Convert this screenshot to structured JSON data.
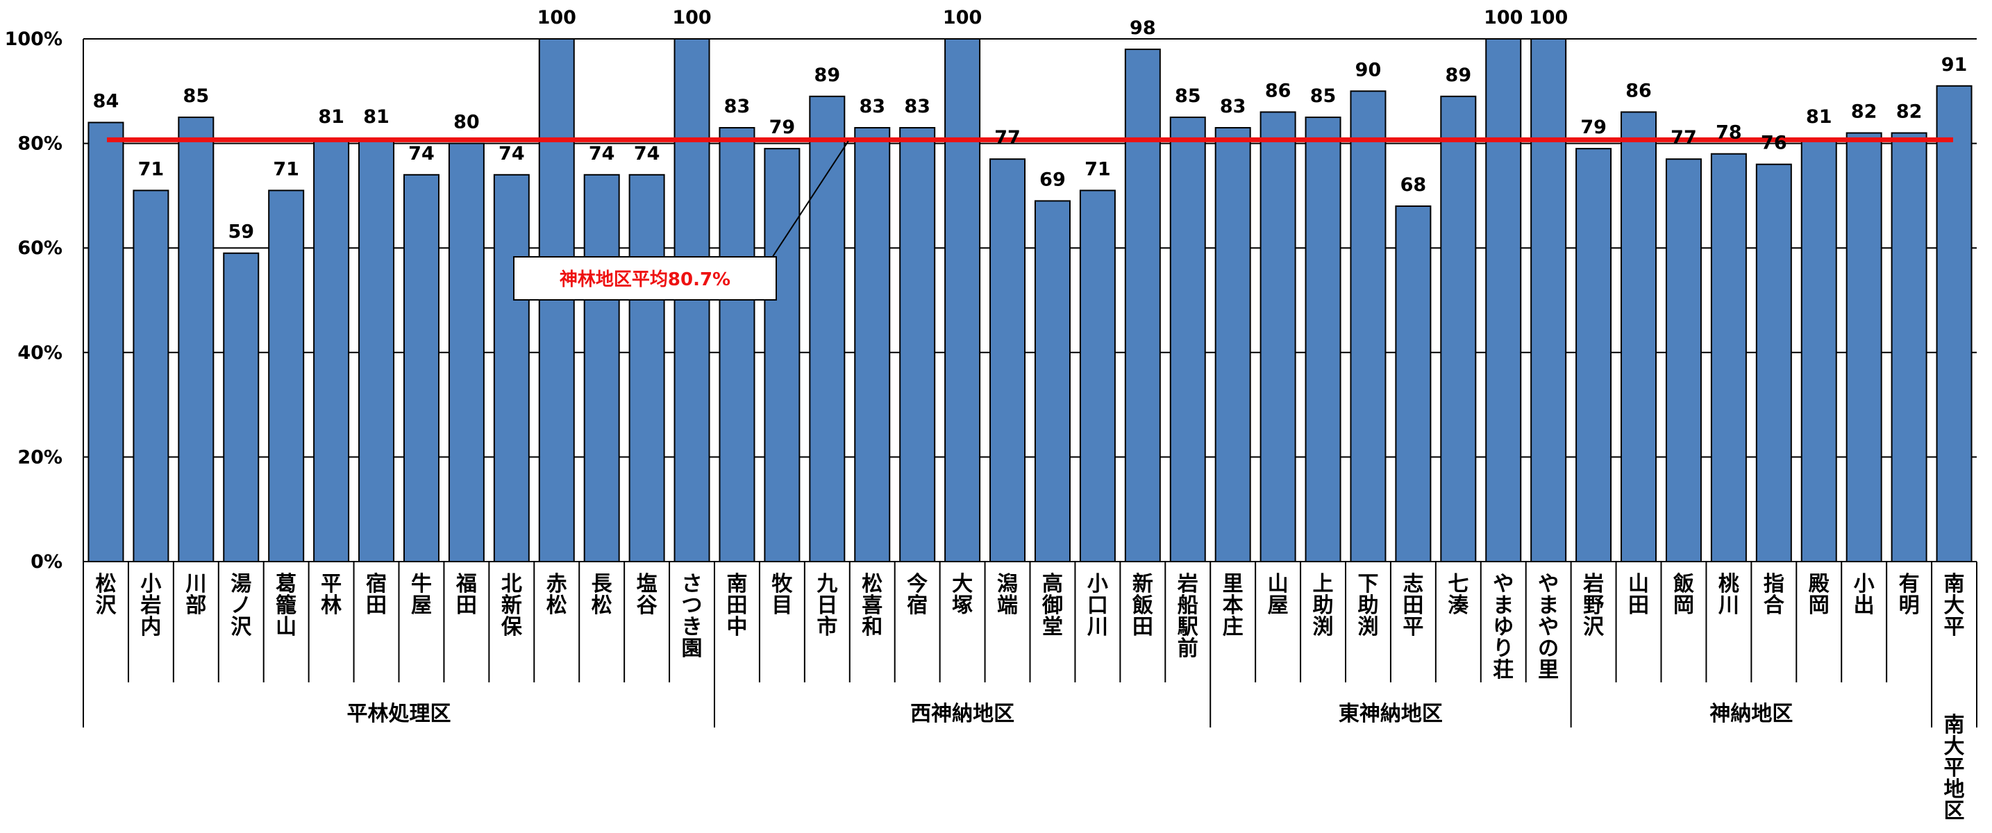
{
  "chart_data": {
    "type": "bar",
    "ylim": [
      0,
      100
    ],
    "yticks": [
      "0%",
      "20%",
      "40%",
      "60%",
      "80%",
      "100%"
    ],
    "grid": true,
    "colors": {
      "bar": "#4f81bd",
      "bar_edge": "#000000",
      "average_line": "#ee1111",
      "grid": "#000000"
    },
    "categories": [
      "松沢",
      "小岩内",
      "川部",
      "湯ノ沢",
      "葛籠山",
      "平林",
      "宿田",
      "牛屋",
      "福田",
      "北新保",
      "赤松",
      "長松",
      "塩谷",
      "さつき園",
      "南田中",
      "牧目",
      "九日市",
      "松喜和",
      "今宿",
      "大塚",
      "潟端",
      "高御堂",
      "小口川",
      "新飯田",
      "岩船駅前",
      "里本庄",
      "山屋",
      "上助渕",
      "下助渕",
      "志田平",
      "七湊",
      "やまゆり荘",
      "やまやの里",
      "岩野沢",
      "山田",
      "飯岡",
      "桃川",
      "指合",
      "殿岡",
      "小出",
      "有明",
      "南大平"
    ],
    "values": [
      84,
      71,
      85,
      59,
      71,
      81,
      81,
      74,
      80,
      74,
      100,
      74,
      74,
      100,
      83,
      79,
      89,
      83,
      83,
      100,
      77,
      69,
      71,
      98,
      85,
      83,
      86,
      85,
      90,
      68,
      89,
      100,
      100,
      79,
      86,
      77,
      78,
      76,
      81,
      82,
      82,
      91
    ],
    "groups": [
      {
        "name": "平林処理区",
        "start": 0,
        "end": 13
      },
      {
        "name": "西神納地区",
        "start": 14,
        "end": 24
      },
      {
        "name": "東神納地区",
        "start": 25,
        "end": 32
      },
      {
        "name": "神納地区",
        "start": 33,
        "end": 40
      },
      {
        "name": "南大平地区",
        "start": 41,
        "end": 41
      }
    ],
    "average": {
      "value": 80.7,
      "label": "神林地区平均80.7%"
    }
  }
}
